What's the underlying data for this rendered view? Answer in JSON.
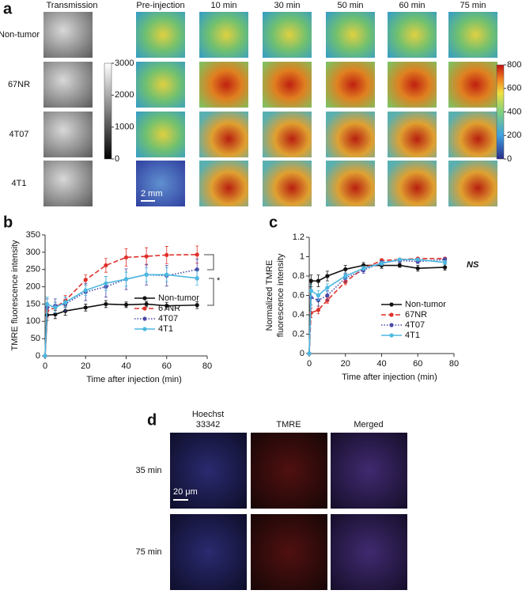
{
  "chart_data": [
    {
      "type": "line",
      "panel": "b",
      "ylabel": [
        "TMRE fluorescence intensity"
      ],
      "xlabel": "Time after injection (min)",
      "x": [
        0,
        1,
        5,
        10,
        20,
        30,
        40,
        50,
        60,
        75
      ],
      "xlim": [
        0,
        80
      ],
      "xticks": [
        0,
        20,
        40,
        60,
        80
      ],
      "ylim": [
        0,
        350
      ],
      "yticks": [
        0,
        50,
        100,
        150,
        200,
        250,
        300,
        350
      ],
      "annotation": "*",
      "legend": "right",
      "series": [
        {
          "name": "Non-tumor",
          "color": "#111111",
          "dash": "solid",
          "values": [
            0,
            118,
            120,
            130,
            140,
            150,
            148,
            150,
            145,
            147
          ],
          "errors": [
            0,
            15,
            12,
            12,
            10,
            10,
            8,
            8,
            10,
            10
          ]
        },
        {
          "name": "67NR",
          "color": "#e0302a",
          "dash": "dashed",
          "values": [
            0,
            130,
            140,
            160,
            220,
            262,
            285,
            288,
            292,
            293
          ],
          "errors": [
            0,
            20,
            15,
            15,
            15,
            20,
            25,
            25,
            25,
            25
          ]
        },
        {
          "name": "4T07",
          "color": "#4a4aa8",
          "dash": "dotted",
          "values": [
            0,
            140,
            145,
            150,
            185,
            200,
            222,
            235,
            232,
            250
          ],
          "errors": [
            0,
            25,
            20,
            20,
            25,
            30,
            30,
            30,
            30,
            30
          ]
        },
        {
          "name": "4T1",
          "color": "#4cb8e0",
          "dash": "solid",
          "values": [
            0,
            150,
            140,
            155,
            190,
            210,
            222,
            235,
            235,
            225
          ],
          "errors": [
            0,
            20,
            15,
            15,
            15,
            20,
            20,
            20,
            20,
            20
          ]
        }
      ]
    },
    {
      "type": "line",
      "panel": "c",
      "ylabel": [
        "Normalized TMRE",
        "fluorescence intensity"
      ],
      "xlabel": "Time after injection (min)",
      "x": [
        0,
        1,
        5,
        10,
        20,
        30,
        40,
        50,
        60,
        75
      ],
      "xlim": [
        0,
        80
      ],
      "xticks": [
        0,
        20,
        40,
        60,
        80
      ],
      "ylim": [
        0,
        1.2
      ],
      "yticks": [
        0,
        0.2,
        0.4,
        0.6,
        0.8,
        1,
        1.2
      ],
      "annotation": "NS",
      "legend": "right",
      "series": [
        {
          "name": "Non-tumor",
          "color": "#111111",
          "dash": "solid",
          "values": [
            0,
            0.75,
            0.75,
            0.8,
            0.87,
            0.91,
            0.91,
            0.91,
            0.88,
            0.89
          ],
          "errors": [
            0,
            0.06,
            0.06,
            0.05,
            0.04,
            0.03,
            0.03,
            0.02,
            0.03,
            0.03
          ]
        },
        {
          "name": "67NR",
          "color": "#e0302a",
          "dash": "dashed",
          "values": [
            0,
            0.42,
            0.45,
            0.55,
            0.74,
            0.88,
            0.96,
            0.97,
            0.98,
            0.98
          ],
          "errors": [
            0,
            0.05,
            0.04,
            0.03,
            0.03,
            0.02,
            0.02,
            0.01,
            0.01,
            0.01
          ]
        },
        {
          "name": "4T07",
          "color": "#4a4aa8",
          "dash": "dotted",
          "values": [
            0,
            0.58,
            0.55,
            0.6,
            0.78,
            0.86,
            0.94,
            0.96,
            0.95,
            0.97
          ],
          "errors": [
            0,
            0.08,
            0.06,
            0.05,
            0.04,
            0.03,
            0.02,
            0.02,
            0.02,
            0.02
          ]
        },
        {
          "name": "4T1",
          "color": "#4cb8e0",
          "dash": "solid",
          "values": [
            0,
            0.65,
            0.6,
            0.68,
            0.8,
            0.88,
            0.93,
            0.97,
            0.97,
            0.94
          ],
          "errors": [
            0,
            0.06,
            0.05,
            0.04,
            0.03,
            0.02,
            0.02,
            0.01,
            0.01,
            0.02
          ]
        }
      ]
    }
  ],
  "panel_a": {
    "label": "a",
    "columns": [
      "Transmission",
      "Pre-injection",
      "10 min",
      "30 min",
      "50 min",
      "60 min",
      "75 min"
    ],
    "rows": [
      "Non-tumor",
      "67NR",
      "4T07",
      "4T1"
    ],
    "gray_colorbar": {
      "range": [
        0,
        3000
      ],
      "ticks": [
        0,
        1000,
        2000,
        3000
      ]
    },
    "color_colorbar": {
      "range": [
        0,
        800
      ],
      "ticks": [
        0,
        200,
        400,
        600,
        800
      ]
    },
    "scale_bar": "2 mm"
  },
  "panel_d": {
    "label": "d",
    "columns": [
      [
        "Hoechst",
        "33342"
      ],
      [
        "TMRE"
      ],
      [
        "Merged"
      ]
    ],
    "rows": [
      "35 min",
      "75 min"
    ],
    "scale_bar": "20 μm"
  }
}
